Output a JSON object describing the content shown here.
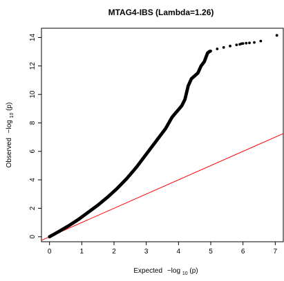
{
  "chart_data": {
    "type": "scatter",
    "title": "MTAG4-IBS (Lambda=1.26)",
    "xlabel": {
      "prefix": "Expected",
      "minus_log": "−log",
      "subscript": "10",
      "arg": "(p)"
    },
    "ylabel": {
      "prefix": "Observed",
      "minus_log": "−log",
      "subscript": "10",
      "arg": "(p)"
    },
    "xlim": [
      -0.25,
      7.25
    ],
    "ylim": [
      -0.35,
      14.65
    ],
    "x_ticks": [
      0,
      1,
      2,
      3,
      4,
      5,
      6,
      7
    ],
    "y_ticks": [
      0,
      2,
      4,
      6,
      8,
      10,
      12,
      14
    ],
    "grid": false,
    "legend": "none",
    "reference_line": {
      "slope": 1,
      "intercept": 0,
      "color": "#ff0000"
    },
    "point_color": "#000000",
    "series": [
      {
        "values_x": [
          0.0,
          0.3,
          0.6,
          0.9,
          1.2,
          1.5,
          1.8,
          2.1,
          2.4,
          2.7,
          3.0,
          3.3,
          3.6,
          3.8,
          3.95,
          4.1,
          4.2,
          4.3,
          4.4,
          4.5,
          4.6,
          4.7,
          4.8,
          4.9,
          4.95,
          5.0,
          5.2,
          5.4,
          5.6,
          5.8,
          5.9,
          5.95,
          6.0,
          6.1,
          6.2,
          6.35,
          6.55,
          7.05
        ],
        "values_y": [
          0.0,
          0.38,
          0.78,
          1.22,
          1.72,
          2.22,
          2.78,
          3.4,
          4.1,
          4.9,
          5.8,
          6.7,
          7.6,
          8.4,
          8.8,
          9.2,
          9.65,
          10.6,
          11.1,
          11.3,
          11.5,
          12.0,
          12.3,
          12.9,
          13.0,
          13.05,
          13.2,
          13.3,
          13.4,
          13.48,
          13.52,
          13.56,
          13.58,
          13.6,
          13.62,
          13.65,
          13.75,
          14.15
        ]
      }
    ]
  }
}
